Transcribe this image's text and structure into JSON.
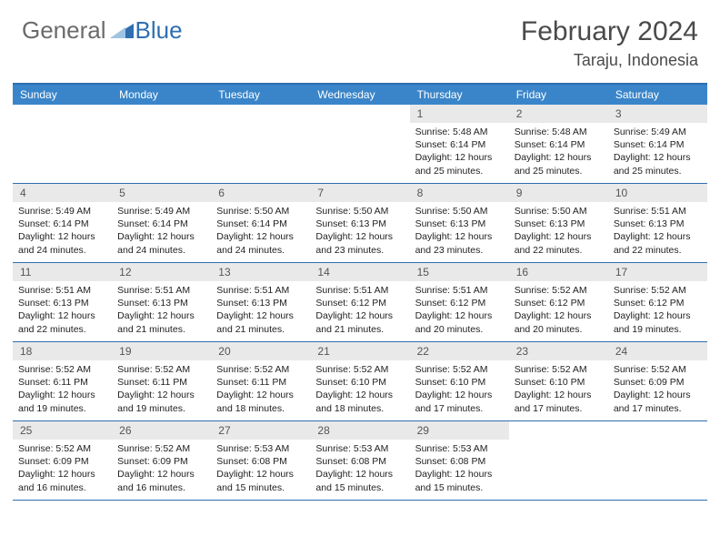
{
  "brand": {
    "part1": "General",
    "part2": "Blue"
  },
  "title": "February 2024",
  "location": "Taraju, Indonesia",
  "colors": {
    "header_bg": "#3a85c9",
    "border": "#2f6fb0",
    "daynum_bg": "#e9e9e9",
    "text": "#222222",
    "title_text": "#4a4a4a",
    "logo_gray": "#6b6b6b",
    "logo_blue": "#2f6fb0"
  },
  "day_names": [
    "Sunday",
    "Monday",
    "Tuesday",
    "Wednesday",
    "Thursday",
    "Friday",
    "Saturday"
  ],
  "weeks": [
    [
      {
        "empty": true
      },
      {
        "empty": true
      },
      {
        "empty": true
      },
      {
        "empty": true
      },
      {
        "day": "1",
        "sunrise": "Sunrise: 5:48 AM",
        "sunset": "Sunset: 6:14 PM",
        "daylight1": "Daylight: 12 hours",
        "daylight2": "and 25 minutes."
      },
      {
        "day": "2",
        "sunrise": "Sunrise: 5:48 AM",
        "sunset": "Sunset: 6:14 PM",
        "daylight1": "Daylight: 12 hours",
        "daylight2": "and 25 minutes."
      },
      {
        "day": "3",
        "sunrise": "Sunrise: 5:49 AM",
        "sunset": "Sunset: 6:14 PM",
        "daylight1": "Daylight: 12 hours",
        "daylight2": "and 25 minutes."
      }
    ],
    [
      {
        "day": "4",
        "sunrise": "Sunrise: 5:49 AM",
        "sunset": "Sunset: 6:14 PM",
        "daylight1": "Daylight: 12 hours",
        "daylight2": "and 24 minutes."
      },
      {
        "day": "5",
        "sunrise": "Sunrise: 5:49 AM",
        "sunset": "Sunset: 6:14 PM",
        "daylight1": "Daylight: 12 hours",
        "daylight2": "and 24 minutes."
      },
      {
        "day": "6",
        "sunrise": "Sunrise: 5:50 AM",
        "sunset": "Sunset: 6:14 PM",
        "daylight1": "Daylight: 12 hours",
        "daylight2": "and 24 minutes."
      },
      {
        "day": "7",
        "sunrise": "Sunrise: 5:50 AM",
        "sunset": "Sunset: 6:13 PM",
        "daylight1": "Daylight: 12 hours",
        "daylight2": "and 23 minutes."
      },
      {
        "day": "8",
        "sunrise": "Sunrise: 5:50 AM",
        "sunset": "Sunset: 6:13 PM",
        "daylight1": "Daylight: 12 hours",
        "daylight2": "and 23 minutes."
      },
      {
        "day": "9",
        "sunrise": "Sunrise: 5:50 AM",
        "sunset": "Sunset: 6:13 PM",
        "daylight1": "Daylight: 12 hours",
        "daylight2": "and 22 minutes."
      },
      {
        "day": "10",
        "sunrise": "Sunrise: 5:51 AM",
        "sunset": "Sunset: 6:13 PM",
        "daylight1": "Daylight: 12 hours",
        "daylight2": "and 22 minutes."
      }
    ],
    [
      {
        "day": "11",
        "sunrise": "Sunrise: 5:51 AM",
        "sunset": "Sunset: 6:13 PM",
        "daylight1": "Daylight: 12 hours",
        "daylight2": "and 22 minutes."
      },
      {
        "day": "12",
        "sunrise": "Sunrise: 5:51 AM",
        "sunset": "Sunset: 6:13 PM",
        "daylight1": "Daylight: 12 hours",
        "daylight2": "and 21 minutes."
      },
      {
        "day": "13",
        "sunrise": "Sunrise: 5:51 AM",
        "sunset": "Sunset: 6:13 PM",
        "daylight1": "Daylight: 12 hours",
        "daylight2": "and 21 minutes."
      },
      {
        "day": "14",
        "sunrise": "Sunrise: 5:51 AM",
        "sunset": "Sunset: 6:12 PM",
        "daylight1": "Daylight: 12 hours",
        "daylight2": "and 21 minutes."
      },
      {
        "day": "15",
        "sunrise": "Sunrise: 5:51 AM",
        "sunset": "Sunset: 6:12 PM",
        "daylight1": "Daylight: 12 hours",
        "daylight2": "and 20 minutes."
      },
      {
        "day": "16",
        "sunrise": "Sunrise: 5:52 AM",
        "sunset": "Sunset: 6:12 PM",
        "daylight1": "Daylight: 12 hours",
        "daylight2": "and 20 minutes."
      },
      {
        "day": "17",
        "sunrise": "Sunrise: 5:52 AM",
        "sunset": "Sunset: 6:12 PM",
        "daylight1": "Daylight: 12 hours",
        "daylight2": "and 19 minutes."
      }
    ],
    [
      {
        "day": "18",
        "sunrise": "Sunrise: 5:52 AM",
        "sunset": "Sunset: 6:11 PM",
        "daylight1": "Daylight: 12 hours",
        "daylight2": "and 19 minutes."
      },
      {
        "day": "19",
        "sunrise": "Sunrise: 5:52 AM",
        "sunset": "Sunset: 6:11 PM",
        "daylight1": "Daylight: 12 hours",
        "daylight2": "and 19 minutes."
      },
      {
        "day": "20",
        "sunrise": "Sunrise: 5:52 AM",
        "sunset": "Sunset: 6:11 PM",
        "daylight1": "Daylight: 12 hours",
        "daylight2": "and 18 minutes."
      },
      {
        "day": "21",
        "sunrise": "Sunrise: 5:52 AM",
        "sunset": "Sunset: 6:10 PM",
        "daylight1": "Daylight: 12 hours",
        "daylight2": "and 18 minutes."
      },
      {
        "day": "22",
        "sunrise": "Sunrise: 5:52 AM",
        "sunset": "Sunset: 6:10 PM",
        "daylight1": "Daylight: 12 hours",
        "daylight2": "and 17 minutes."
      },
      {
        "day": "23",
        "sunrise": "Sunrise: 5:52 AM",
        "sunset": "Sunset: 6:10 PM",
        "daylight1": "Daylight: 12 hours",
        "daylight2": "and 17 minutes."
      },
      {
        "day": "24",
        "sunrise": "Sunrise: 5:52 AM",
        "sunset": "Sunset: 6:09 PM",
        "daylight1": "Daylight: 12 hours",
        "daylight2": "and 17 minutes."
      }
    ],
    [
      {
        "day": "25",
        "sunrise": "Sunrise: 5:52 AM",
        "sunset": "Sunset: 6:09 PM",
        "daylight1": "Daylight: 12 hours",
        "daylight2": "and 16 minutes."
      },
      {
        "day": "26",
        "sunrise": "Sunrise: 5:52 AM",
        "sunset": "Sunset: 6:09 PM",
        "daylight1": "Daylight: 12 hours",
        "daylight2": "and 16 minutes."
      },
      {
        "day": "27",
        "sunrise": "Sunrise: 5:53 AM",
        "sunset": "Sunset: 6:08 PM",
        "daylight1": "Daylight: 12 hours",
        "daylight2": "and 15 minutes."
      },
      {
        "day": "28",
        "sunrise": "Sunrise: 5:53 AM",
        "sunset": "Sunset: 6:08 PM",
        "daylight1": "Daylight: 12 hours",
        "daylight2": "and 15 minutes."
      },
      {
        "day": "29",
        "sunrise": "Sunrise: 5:53 AM",
        "sunset": "Sunset: 6:08 PM",
        "daylight1": "Daylight: 12 hours",
        "daylight2": "and 15 minutes."
      },
      {
        "empty": true
      },
      {
        "empty": true
      }
    ]
  ]
}
